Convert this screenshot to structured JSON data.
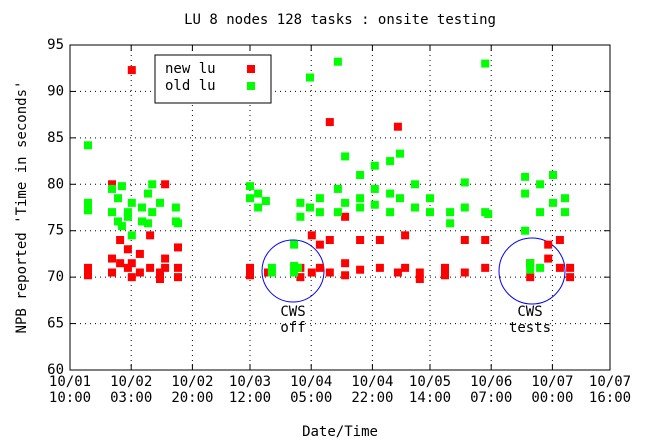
{
  "chart_data": {
    "type": "scatter",
    "title": "LU 8 nodes 128 tasks : onsite testing",
    "xlabel": "Date/Time",
    "ylabel": "NPB reported 'Time in seconds'",
    "xlim": [
      "10/01 10:00",
      "10/07 16:00"
    ],
    "xticks": [
      "10/01 10:00",
      "10/02 03:00",
      "10/02 20:00",
      "10/03 12:00",
      "10/04 05:00",
      "10/04 22:00",
      "10/05 14:00",
      "10/06 07:00",
      "10/07 00:00",
      "10/07 16:00"
    ],
    "ylim": [
      60,
      95
    ],
    "yticks": [
      60,
      65,
      70,
      75,
      80,
      85,
      90,
      95
    ],
    "grid": true,
    "legend": "upper left",
    "annotations": [
      "CWS off",
      "CWS tests"
    ],
    "series": [
      {
        "name": "new lu",
        "color": "#ff0000",
        "x": [
          "10/01 15:00",
          "10/01 15:00",
          "10/01 21:40",
          "10/01 21:40",
          "10/01 21:40",
          "10/01 23:55",
          "10/01 23:55",
          "10/02 02:05",
          "10/02 02:05",
          "10/02 03:10",
          "10/02 03:10",
          "10/02 03:10",
          "10/02 05:25",
          "10/02 05:25",
          "10/02 08:15",
          "10/02 08:15",
          "10/02 11:00",
          "10/02 11:00",
          "10/02 12:25",
          "10/02 12:25",
          "10/02 12:25",
          "10/02 16:00",
          "10/02 16:00",
          "10/02 16:00",
          "10/03 12:00",
          "10/03 12:00",
          "10/03 17:00",
          "10/04 02:00",
          "10/04 02:00",
          "10/04 05:10",
          "10/04 05:10",
          "10/04 07:25",
          "10/04 07:25",
          "10/04 10:10",
          "10/04 10:10",
          "10/04 10:10",
          "10/04 14:25",
          "10/04 14:25",
          "10/04 14:25",
          "10/04 18:35",
          "10/04 18:35",
          "10/05 00:05",
          "10/05 00:05",
          "10/05 05:05",
          "10/05 05:05",
          "10/05 07:05",
          "10/05 07:05",
          "10/05 11:10",
          "10/05 11:10",
          "10/05 18:10",
          "10/05 18:10",
          "10/05 23:40",
          "10/05 23:40",
          "10/06 05:20",
          "10/06 05:20",
          "10/06 17:50",
          "10/06 17:50",
          "10/06 22:50",
          "10/06 22:50",
          "10/07 02:05",
          "10/07 02:05",
          "10/07 04:55",
          "10/07 04:55"
        ],
        "values": [
          71,
          70.2,
          80,
          72,
          70.5,
          74,
          71.5,
          73,
          71,
          92.3,
          71.5,
          70,
          72.5,
          70.5,
          74.5,
          71,
          70.5,
          69.8,
          80,
          72,
          71,
          73.2,
          71,
          70,
          71,
          70.2,
          70.5,
          71,
          70,
          74.5,
          70.5,
          73.5,
          71,
          86.7,
          74,
          70.5,
          76.5,
          71.5,
          70.2,
          74,
          70.8,
          74,
          71,
          86.2,
          70.5,
          74.5,
          71,
          70.5,
          69.8,
          71,
          70.2,
          74,
          70.5,
          74,
          71,
          71.5,
          70,
          73.5,
          72,
          74,
          71,
          71,
          70
        ]
      },
      {
        "name": "old lu",
        "color": "#00ff00",
        "x": [
          "10/01 15:00",
          "10/01 15:00",
          "10/01 15:00",
          "10/01 21:40",
          "10/01 21:40",
          "10/01 23:20",
          "10/01 23:20",
          "10/02 00:25",
          "10/02 00:25",
          "10/02 02:05",
          "10/02 02:05",
          "10/02 03:10",
          "10/02 03:10",
          "10/02 06:00",
          "10/02 06:00",
          "10/02 07:40",
          "10/02 07:40",
          "10/02 08:50",
          "10/02 08:50",
          "10/02 11:00",
          "10/02 15:25",
          "10/02 15:25",
          "10/02 16:00",
          "10/03 12:00",
          "10/03 12:00",
          "10/03 14:15",
          "10/03 14:15",
          "10/03 16:25",
          "10/03 18:05",
          "10/03 18:05",
          "10/04 00:15",
          "10/04 00:15",
          "10/04 00:15",
          "10/04 01:20",
          "10/04 02:00",
          "10/04 02:00",
          "10/04 04:40",
          "10/04 04:40",
          "10/04 07:25",
          "10/04 07:25",
          "10/04 12:25",
          "10/04 12:25",
          "10/04 12:25",
          "10/04 14:25",
          "10/04 14:25",
          "10/04 18:35",
          "10/04 18:35",
          "10/04 18:35",
          "10/04 22:40",
          "10/04 22:40",
          "10/04 22:40",
          "10/05 02:55",
          "10/05 02:55",
          "10/05 02:55",
          "10/05 05:40",
          "10/05 05:40",
          "10/05 09:50",
          "10/05 09:50",
          "10/05 14:00",
          "10/05 14:00",
          "10/05 19:35",
          "10/05 19:35",
          "10/05 23:40",
          "10/05 23:40",
          "10/06 05:20",
          "10/06 05:20",
          "10/06 06:10",
          "10/06 16:25",
          "10/06 16:25",
          "10/06 16:25",
          "10/06 17:50",
          "10/06 17:50",
          "10/06 20:35",
          "10/06 20:35",
          "10/06 20:35",
          "10/07 00:10",
          "10/07 00:10",
          "10/07 03:30",
          "10/07 03:30"
        ],
        "values": [
          84.2,
          78,
          77.2,
          79.5,
          77,
          76,
          78.5,
          79.8,
          75.5,
          77,
          76.5,
          78,
          74.5,
          77.5,
          76,
          79,
          75.8,
          80,
          77,
          78,
          77.5,
          76,
          75.8,
          79.8,
          78.5,
          79,
          77.5,
          78.2,
          71,
          70.5,
          73.5,
          71.2,
          70.5,
          71,
          78,
          76.5,
          91.5,
          77.5,
          78.5,
          77,
          93.2,
          79.5,
          77,
          83,
          78,
          81,
          78.5,
          77.5,
          82,
          79.5,
          77.8,
          82.5,
          79,
          77,
          83.3,
          78.5,
          80,
          77.5,
          78.5,
          77,
          77,
          75.8,
          80.2,
          77.5,
          93,
          77,
          76.8,
          80.8,
          79,
          75,
          71.5,
          70.8,
          80,
          77,
          71,
          81,
          78,
          78.5,
          77
        ]
      }
    ]
  }
}
